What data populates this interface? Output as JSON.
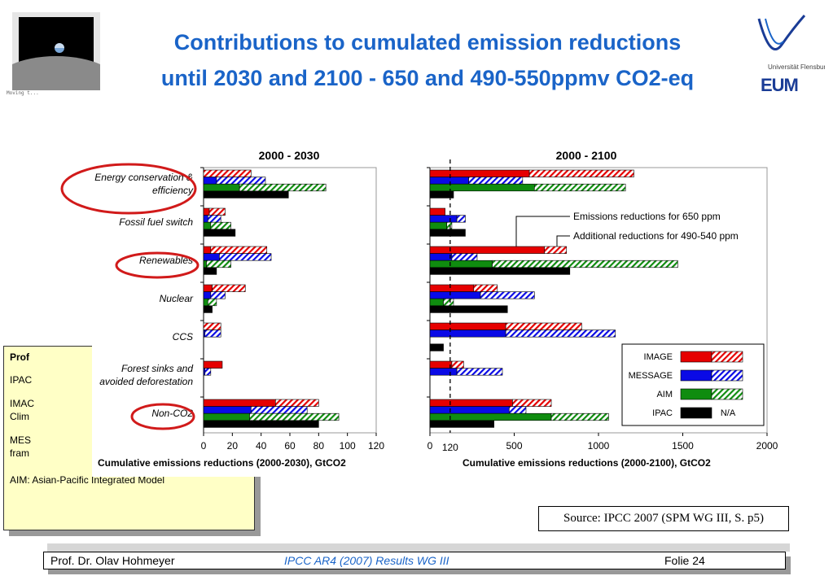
{
  "header": {
    "title_line1": "Contributions to cumulated emission reductions",
    "title_line2": "until 2030 and 2100 - 650 and 490-550ppmv CO2-eq",
    "earth_caption": "Moving t...",
    "logo_small": "Universität Flensburg",
    "logo_main": "EUM"
  },
  "abbreviations": {
    "lines": [
      "Prof",
      "IPAC",
      "IMAC",
      "Clim",
      "MES",
      "fram",
      "AIM: Asian-Pacific Integrated Model"
    ]
  },
  "source": "Source: IPCC 2007 (SPM WG III, S. p5)",
  "footer": {
    "author": "Prof. Dr. Olav Hohmeyer",
    "center": "IPCC AR4 (2007) Results WG III",
    "page": "Folie 24"
  },
  "colors": {
    "IMAGE": "#e60000",
    "MESSAGE": "#0a0ae6",
    "AIM": "#0f8c0f",
    "IPAC": "#000000",
    "title": "#1a64c8",
    "circle": "#d11a1a"
  },
  "annotations": {
    "label_650": "Emissions reductions for 650 ppm",
    "label_490": "Additional reductions for 490-540 ppm"
  },
  "legend": {
    "entries": [
      {
        "model": "IMAGE",
        "color": "#e60000"
      },
      {
        "model": "MESSAGE",
        "color": "#0a0ae6"
      },
      {
        "model": "AIM",
        "color": "#0f8c0f"
      },
      {
        "model": "IPAC",
        "color": "#000000",
        "note": "N/A"
      }
    ],
    "placement": "right, lower half of 2000-2100 panel"
  },
  "chart_data": [
    {
      "type": "bar",
      "orientation": "horizontal",
      "stacked": true,
      "title": "2000 - 2030",
      "xlabel": "Cumulative emissions reductions (2000-2030), GtCO2",
      "xlim": [
        0,
        120
      ],
      "xticks": [
        0,
        20,
        40,
        60,
        80,
        100,
        120
      ],
      "categories": [
        "Energy conservation & efficiency",
        "Fossil fuel switch",
        "Renewables",
        "Nuclear",
        "CCS",
        "Forest sinks and avoided deforestation",
        "Non-CO2"
      ],
      "category_lines": [
        [
          "Energy conservation &",
          "efficiency"
        ],
        [
          "Fossil fuel switch"
        ],
        [
          "Renewables"
        ],
        [
          "Nuclear"
        ],
        [
          "CCS"
        ],
        [
          "Forest sinks and",
          "avoided deforestation"
        ],
        [
          "Non-CO2"
        ]
      ],
      "circled": [
        "Energy conservation & efficiency",
        "Renewables",
        "Non-CO2"
      ],
      "grid": false,
      "series": [
        {
          "name": "IMAGE",
          "base_650": [
            0,
            4,
            5,
            6,
            0,
            13,
            50
          ],
          "additional_490": [
            33,
            11,
            39,
            23,
            12,
            0,
            30
          ]
        },
        {
          "name": "MESSAGE",
          "base_650": [
            9,
            3,
            11,
            5,
            1,
            1,
            33
          ],
          "additional_490": [
            34,
            9,
            36,
            10,
            11,
            4,
            39
          ]
        },
        {
          "name": "AIM",
          "base_650": [
            25,
            5,
            2,
            3,
            0,
            0,
            32
          ],
          "additional_490": [
            60,
            14,
            17,
            6,
            0,
            0,
            62
          ]
        },
        {
          "name": "IPAC",
          "base_650": [
            59,
            22,
            9,
            6,
            0,
            0,
            80
          ],
          "additional_490": [
            0,
            0,
            0,
            0,
            0,
            0,
            0
          ]
        }
      ]
    },
    {
      "type": "bar",
      "orientation": "horizontal",
      "stacked": true,
      "title": "2000 - 2100",
      "xlabel": "Cumulative emissions reductions (2000-2100), GtCO2",
      "xlim": [
        0,
        2000
      ],
      "xticks": [
        0,
        500,
        1000,
        1500,
        2000
      ],
      "reference_line": 120,
      "reference_label": "120",
      "categories": [
        "Energy conservation & efficiency",
        "Fossil fuel switch",
        "Renewables",
        "Nuclear",
        "CCS",
        "Forest sinks and avoided deforestation",
        "Non-CO2"
      ],
      "grid": false,
      "series": [
        {
          "name": "IMAGE",
          "base_650": [
            590,
            90,
            680,
            260,
            450,
            130,
            490
          ],
          "additional_490": [
            620,
            0,
            130,
            140,
            450,
            70,
            230
          ]
        },
        {
          "name": "MESSAGE",
          "base_650": [
            230,
            160,
            130,
            300,
            450,
            160,
            470
          ],
          "additional_490": [
            320,
            50,
            150,
            320,
            650,
            270,
            100
          ]
        },
        {
          "name": "AIM",
          "base_650": [
            620,
            100,
            370,
            80,
            0,
            0,
            720
          ],
          "additional_490": [
            540,
            30,
            1100,
            60,
            0,
            0,
            340
          ]
        },
        {
          "name": "IPAC",
          "base_650": [
            140,
            210,
            830,
            460,
            80,
            0,
            380
          ],
          "additional_490": [
            0,
            0,
            0,
            0,
            0,
            0,
            0
          ]
        }
      ]
    }
  ]
}
